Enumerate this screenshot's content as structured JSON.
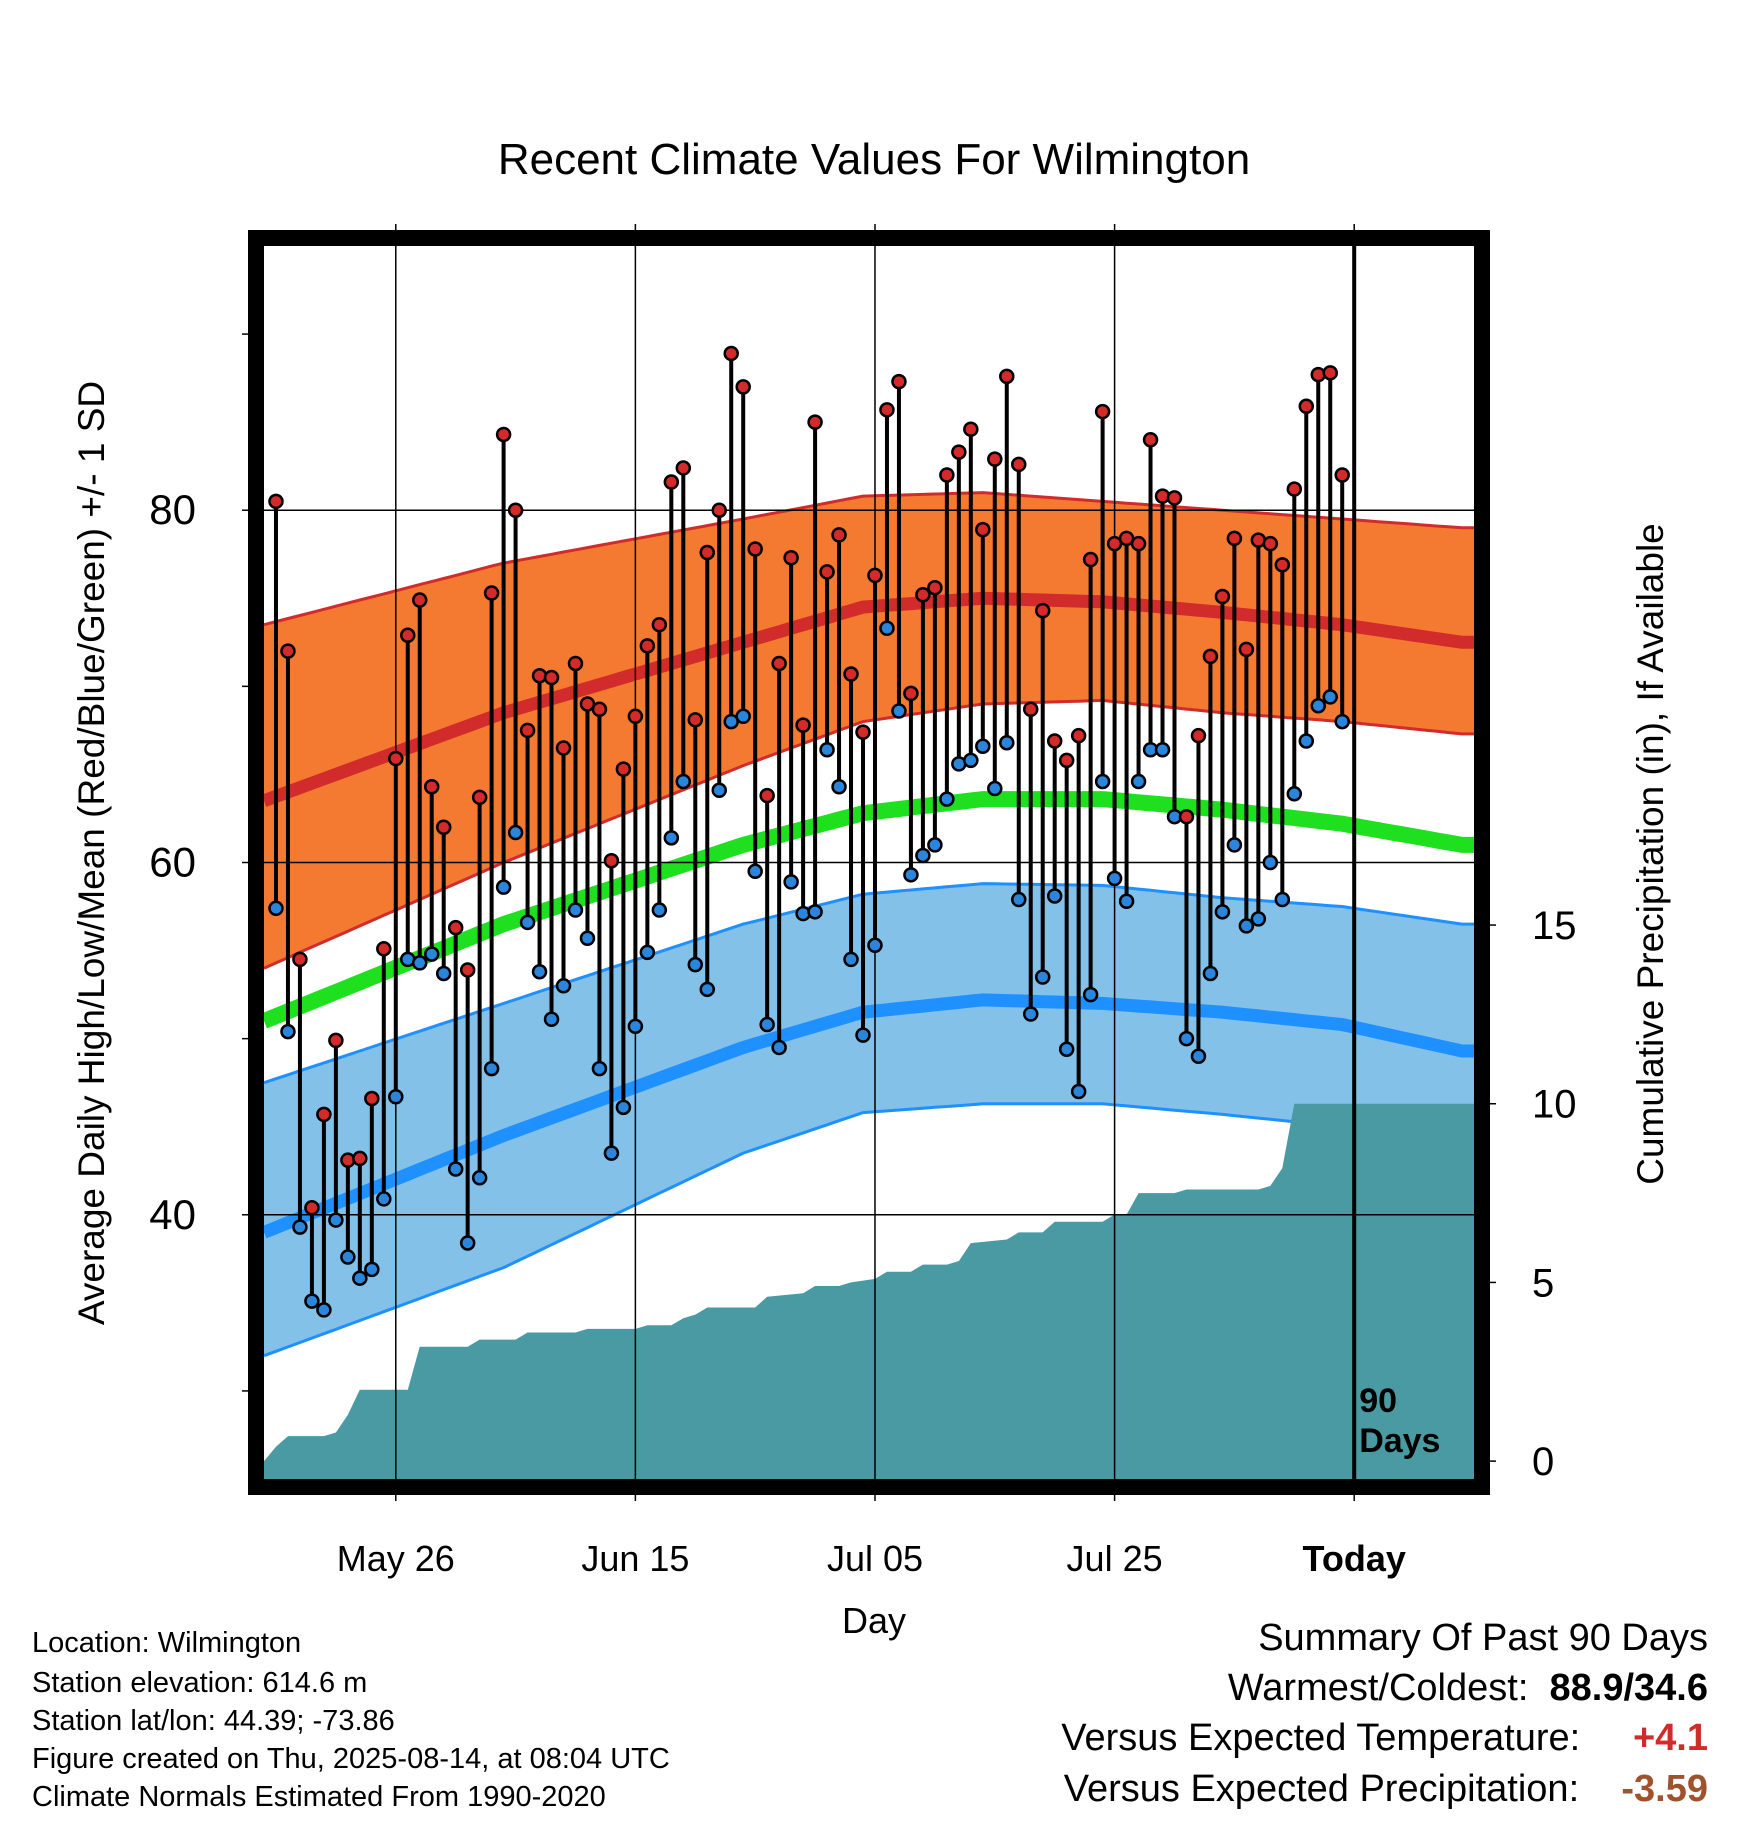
{
  "chart_data": {
    "type": "line",
    "title": "Recent Climate Values For Wilmington",
    "xlabel": "Day",
    "ylabel": "Average Daily High/Low/Mean (Red/Blue/Green) +/- 1 SD",
    "y2label": "Cumulative Precipitation (in), If Available",
    "x_ticks": [
      {
        "label": "May 26",
        "day": 11
      },
      {
        "label": "Jun 15",
        "day": 31
      },
      {
        "label": "Jul 05",
        "day": 51
      },
      {
        "label": "Jul 25",
        "day": 71
      },
      {
        "label": "Today",
        "day": 91
      }
    ],
    "y_ticks": [
      40,
      60,
      80
    ],
    "y2_ticks": [
      0,
      5,
      10,
      15
    ],
    "ylim": [
      25,
      95
    ],
    "y2lim": [
      -0.5,
      34
    ],
    "xlim": [
      0,
      101
    ],
    "today_label": "90\nDays",
    "normal_high": [
      [
        0,
        63.5
      ],
      [
        20,
        68.5
      ],
      [
        40,
        72.5
      ],
      [
        50,
        74.5
      ],
      [
        60,
        75.0
      ],
      [
        70,
        74.8
      ],
      [
        80,
        74.2
      ],
      [
        90,
        73.5
      ],
      [
        100,
        72.5
      ]
    ],
    "normal_high_plus_sd": [
      [
        0,
        73.5
      ],
      [
        20,
        77.0
      ],
      [
        40,
        79.5
      ],
      [
        50,
        80.8
      ],
      [
        60,
        81.0
      ],
      [
        70,
        80.5
      ],
      [
        80,
        80.0
      ],
      [
        90,
        79.5
      ],
      [
        100,
        79.0
      ]
    ],
    "normal_high_minus_sd": [
      [
        0,
        54.0
      ],
      [
        20,
        60.0
      ],
      [
        40,
        65.5
      ],
      [
        50,
        68.0
      ],
      [
        60,
        69.0
      ],
      [
        70,
        69.2
      ],
      [
        80,
        68.5
      ],
      [
        90,
        68.0
      ],
      [
        100,
        67.3
      ]
    ],
    "normal_mean": [
      [
        0,
        51.0
      ],
      [
        20,
        56.5
      ],
      [
        40,
        61.0
      ],
      [
        50,
        62.8
      ],
      [
        60,
        63.6
      ],
      [
        70,
        63.6
      ],
      [
        80,
        63.0
      ],
      [
        90,
        62.2
      ],
      [
        100,
        61.0
      ]
    ],
    "normal_low": [
      [
        0,
        39.0
      ],
      [
        20,
        44.5
      ],
      [
        40,
        49.5
      ],
      [
        50,
        51.5
      ],
      [
        60,
        52.2
      ],
      [
        70,
        52.0
      ],
      [
        80,
        51.5
      ],
      [
        90,
        50.8
      ],
      [
        100,
        49.3
      ]
    ],
    "normal_low_plus_sd": [
      [
        0,
        47.5
      ],
      [
        20,
        52.0
      ],
      [
        40,
        56.5
      ],
      [
        50,
        58.2
      ],
      [
        60,
        58.8
      ],
      [
        70,
        58.7
      ],
      [
        80,
        58.0
      ],
      [
        90,
        57.5
      ],
      [
        100,
        56.5
      ]
    ],
    "normal_low_minus_sd": [
      [
        0,
        32.0
      ],
      [
        20,
        37.0
      ],
      [
        40,
        43.5
      ],
      [
        50,
        45.8
      ],
      [
        60,
        46.3
      ],
      [
        70,
        46.3
      ],
      [
        80,
        45.7
      ],
      [
        90,
        45.0
      ],
      [
        100,
        43.3
      ]
    ],
    "daily_high": [
      80.5,
      72.0,
      54.5,
      40.4,
      45.7,
      49.9,
      43.1,
      43.2,
      46.6,
      55.1,
      65.9,
      72.9,
      74.9,
      64.3,
      62.0,
      56.3,
      53.9,
      63.7,
      75.3,
      84.3,
      80.0,
      67.5,
      70.6,
      70.5,
      66.5,
      71.3,
      69.0,
      68.7,
      60.1,
      65.3,
      68.3,
      72.3,
      73.5,
      81.6,
      82.4,
      68.1,
      77.6,
      80.0,
      88.9,
      87.0,
      77.8,
      63.8,
      71.3,
      77.3,
      67.8,
      85.0,
      76.5,
      78.6,
      70.7,
      67.4,
      76.3,
      85.7,
      87.3,
      69.6,
      75.2,
      75.6,
      82.0,
      83.3,
      84.6,
      78.9,
      82.9,
      87.6,
      82.6,
      68.7,
      74.3,
      66.9,
      65.8,
      67.2,
      77.2,
      85.6,
      78.1,
      78.4,
      78.1,
      84.0,
      80.8,
      80.7,
      62.6,
      67.2,
      71.7,
      75.1,
      78.4,
      72.1,
      78.3,
      78.1,
      76.9,
      81.2,
      85.9,
      87.7,
      87.8,
      82.0
    ],
    "daily_low": [
      57.4,
      50.4,
      39.3,
      35.1,
      34.6,
      39.7,
      37.6,
      36.4,
      36.9,
      40.9,
      46.7,
      54.5,
      54.3,
      54.8,
      53.7,
      42.6,
      38.4,
      42.1,
      48.3,
      58.6,
      61.7,
      56.6,
      53.8,
      51.1,
      53.0,
      57.3,
      55.7,
      48.3,
      43.5,
      46.1,
      50.7,
      54.9,
      57.3,
      61.4,
      64.6,
      54.2,
      52.8,
      64.1,
      68.0,
      68.3,
      59.5,
      50.8,
      49.5,
      58.9,
      57.1,
      57.2,
      66.4,
      64.3,
      54.5,
      50.2,
      55.3,
      73.3,
      68.6,
      59.3,
      60.4,
      61.0,
      63.6,
      65.6,
      65.8,
      66.6,
      64.2,
      66.8,
      57.9,
      51.4,
      53.5,
      58.1,
      49.4,
      47.0,
      52.5,
      64.6,
      59.1,
      57.8,
      64.6,
      66.4,
      66.4,
      62.6,
      50.0,
      49.0,
      53.7,
      57.2,
      61.0,
      56.4,
      56.8,
      60.0,
      57.9,
      63.9,
      66.9,
      68.9,
      69.4,
      68.0
    ],
    "cumulative_precip": [
      [
        0,
        0.0
      ],
      [
        1,
        0.4
      ],
      [
        2,
        0.7
      ],
      [
        5,
        0.7
      ],
      [
        6,
        0.8
      ],
      [
        7,
        1.3
      ],
      [
        8,
        2.0
      ],
      [
        12,
        2.0
      ],
      [
        13,
        3.2
      ],
      [
        17,
        3.2
      ],
      [
        18,
        3.4
      ],
      [
        21,
        3.4
      ],
      [
        22,
        3.6
      ],
      [
        26,
        3.6
      ],
      [
        27,
        3.7
      ],
      [
        31,
        3.7
      ],
      [
        32,
        3.8
      ],
      [
        34,
        3.8
      ],
      [
        35,
        4.0
      ],
      [
        36,
        4.1
      ],
      [
        37,
        4.3
      ],
      [
        41,
        4.3
      ],
      [
        42,
        4.6
      ],
      [
        45,
        4.7
      ],
      [
        46,
        4.9
      ],
      [
        48,
        4.9
      ],
      [
        49,
        5.0
      ],
      [
        51,
        5.1
      ],
      [
        52,
        5.3
      ],
      [
        54,
        5.3
      ],
      [
        55,
        5.5
      ],
      [
        57,
        5.5
      ],
      [
        58,
        5.6
      ],
      [
        59,
        6.1
      ],
      [
        62,
        6.2
      ],
      [
        63,
        6.4
      ],
      [
        65,
        6.4
      ],
      [
        66,
        6.7
      ],
      [
        70,
        6.7
      ],
      [
        71,
        6.9
      ],
      [
        72,
        6.9
      ],
      [
        73,
        7.5
      ],
      [
        76,
        7.5
      ],
      [
        77,
        7.6
      ],
      [
        83,
        7.6
      ],
      [
        84,
        7.7
      ],
      [
        85,
        8.2
      ],
      [
        86,
        10.0
      ],
      [
        101,
        10.0
      ]
    ]
  },
  "info": {
    "location": "Location: Wilmington",
    "elevation": "Station elevation: 614.6 m",
    "latlon": "Station lat/lon: 44.39; -73.86",
    "created": "Figure created on Thu, 2025-08-14, at 08:04 UTC",
    "normals": "Climate Normals Estimated From 1990-2020"
  },
  "summary": {
    "title": "Summary Of Past 90 Days",
    "warm_cold_label": "Warmest/Coldest:",
    "warm_cold_value": "88.9/34.6",
    "temp_label": "Versus Expected Temperature:",
    "temp_value": "+4.1",
    "precip_label": "Versus Expected Precipitation:",
    "precip_value": "-3.59"
  },
  "colors": {
    "high_band": "#f47a32",
    "high_line": "#d12b2b",
    "low_band": "#84c1e8",
    "low_line": "#1e90ff",
    "mean_line": "#1fe01f",
    "precip": "#4a9aa3",
    "high_dot": "#d42a2a",
    "low_dot": "#2a86dd",
    "temp_anomaly": "#d12b2b",
    "precip_anomaly": "#a0522d"
  }
}
